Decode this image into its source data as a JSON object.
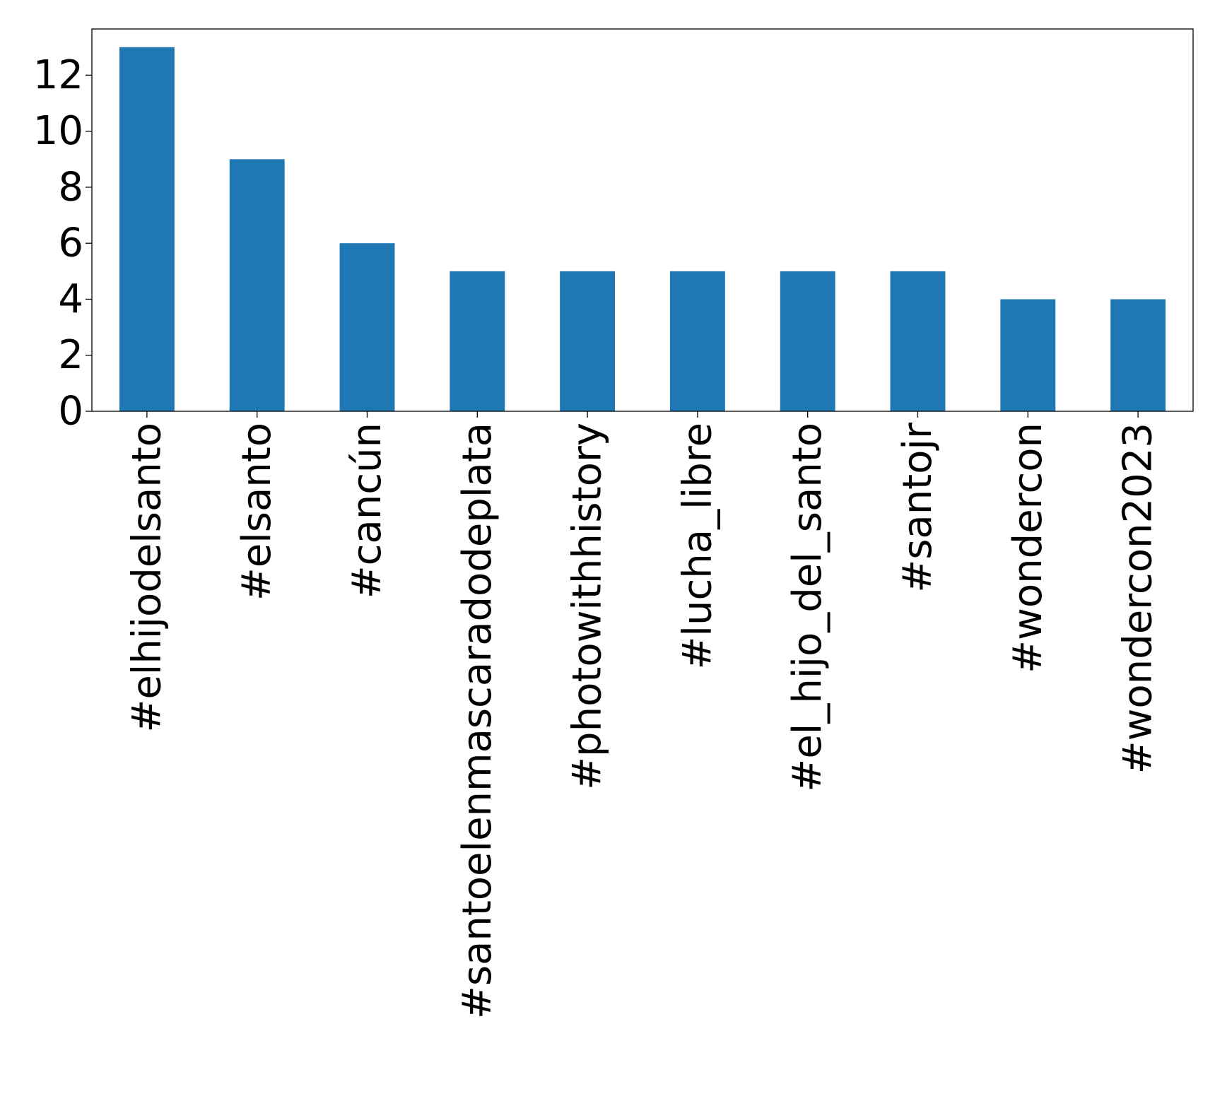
{
  "chart_data": {
    "type": "bar",
    "title": "",
    "xlabel": "",
    "ylabel": "",
    "categories": [
      "#elhijodelsanto",
      "#elsanto",
      "#cancún",
      "#santoelenmascaradodeplata",
      "#photowithhistory",
      "#lucha_libre",
      "#el_hijo_del_santo",
      "#santojr",
      "#wondercon",
      "#wondercon2023"
    ],
    "values": [
      13,
      9,
      6,
      5,
      5,
      5,
      5,
      5,
      4,
      4
    ],
    "ylim": [
      0,
      13.65
    ],
    "yticks": [
      0,
      2,
      4,
      6,
      8,
      10,
      12
    ],
    "grid": false,
    "bar_color": "#1f77b4"
  }
}
